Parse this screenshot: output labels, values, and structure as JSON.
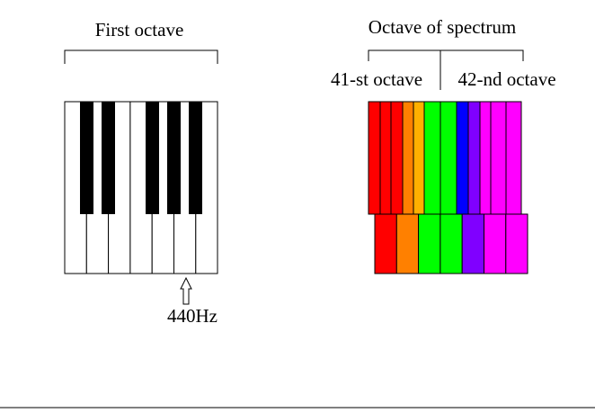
{
  "left": {
    "title": "First octave",
    "marker": "440Hz"
  },
  "right": {
    "title": "Octave of spectrum",
    "first": "41-st octave",
    "second": "42-nd octave"
  }
}
